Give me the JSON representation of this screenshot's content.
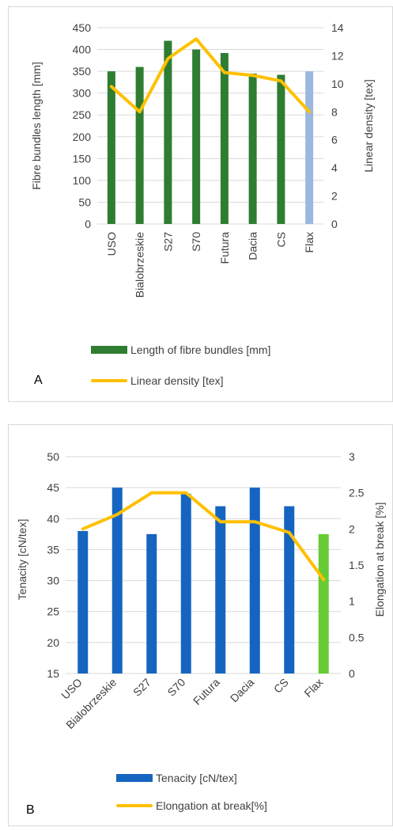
{
  "panels": [
    {
      "letter": "A",
      "legend": {
        "bar_label": "Length of fibre bundles [mm]",
        "line_label": "Linear density [tex]"
      }
    },
    {
      "letter": "B",
      "legend": {
        "bar_label": "Tenacity [cN/tex]",
        "line_label": "Elongation at break[%]"
      }
    }
  ],
  "chart_data": [
    {
      "type": "bar",
      "categories": [
        "USO",
        "Bialobrzeskie",
        "S27",
        "S70",
        "Futura",
        "Dacia",
        "CS",
        "Flax"
      ],
      "series": [
        {
          "name": "Length of fibre bundles [mm]",
          "axis": "left",
          "kind": "bar",
          "values": [
            350,
            360,
            420,
            400,
            392,
            345,
            342,
            350
          ],
          "colors": [
            "#2e7d32",
            "#2e7d32",
            "#2e7d32",
            "#2e7d32",
            "#2e7d32",
            "#2e7d32",
            "#2e7d32",
            "#9bb7e0"
          ]
        },
        {
          "name": "Linear density [tex]",
          "axis": "right",
          "kind": "line",
          "values": [
            9.8,
            8.0,
            11.8,
            13.2,
            10.8,
            10.6,
            10.2,
            8.0
          ],
          "color": "#ffc000"
        }
      ],
      "ylabel": "Fibre bundles length [mm]",
      "y2label": "Linear density [tex]",
      "ylim": [
        0,
        450
      ],
      "yticks": [
        0,
        50,
        100,
        150,
        200,
        250,
        300,
        350,
        400,
        450
      ],
      "y2lim": [
        0,
        14
      ],
      "y2ticks": [
        0,
        2,
        4,
        6,
        8,
        10,
        12,
        14
      ],
      "grid": true,
      "legend": "bottom"
    },
    {
      "type": "bar",
      "categories": [
        "USO",
        "Bialobrzeskie",
        "S27",
        "S70",
        "Futura",
        "Dacia",
        "CS",
        "Flax"
      ],
      "series": [
        {
          "name": "Tenacity [cN/tex]",
          "axis": "left",
          "kind": "bar",
          "values": [
            38,
            45,
            37.5,
            44,
            42,
            45,
            42,
            37.5
          ],
          "colors": [
            "#1565c0",
            "#1565c0",
            "#1565c0",
            "#1565c0",
            "#1565c0",
            "#1565c0",
            "#1565c0",
            "#66cc33"
          ]
        },
        {
          "name": "Elongation at break[%]",
          "axis": "right",
          "kind": "line",
          "values": [
            2.0,
            2.2,
            2.5,
            2.5,
            2.1,
            2.1,
            1.95,
            1.3
          ],
          "color": "#ffc000"
        }
      ],
      "ylabel": "Tenacity [cN/tex]",
      "y2label": "Elongation at break [%]",
      "ylim": [
        15,
        50
      ],
      "yticks": [
        15,
        20,
        25,
        30,
        35,
        40,
        45,
        50
      ],
      "y2lim": [
        0,
        3
      ],
      "y2ticks": [
        "0",
        "0.5",
        "1",
        "1.5",
        "2",
        "2.5",
        "3"
      ],
      "grid": true,
      "legend": "bottom"
    }
  ]
}
